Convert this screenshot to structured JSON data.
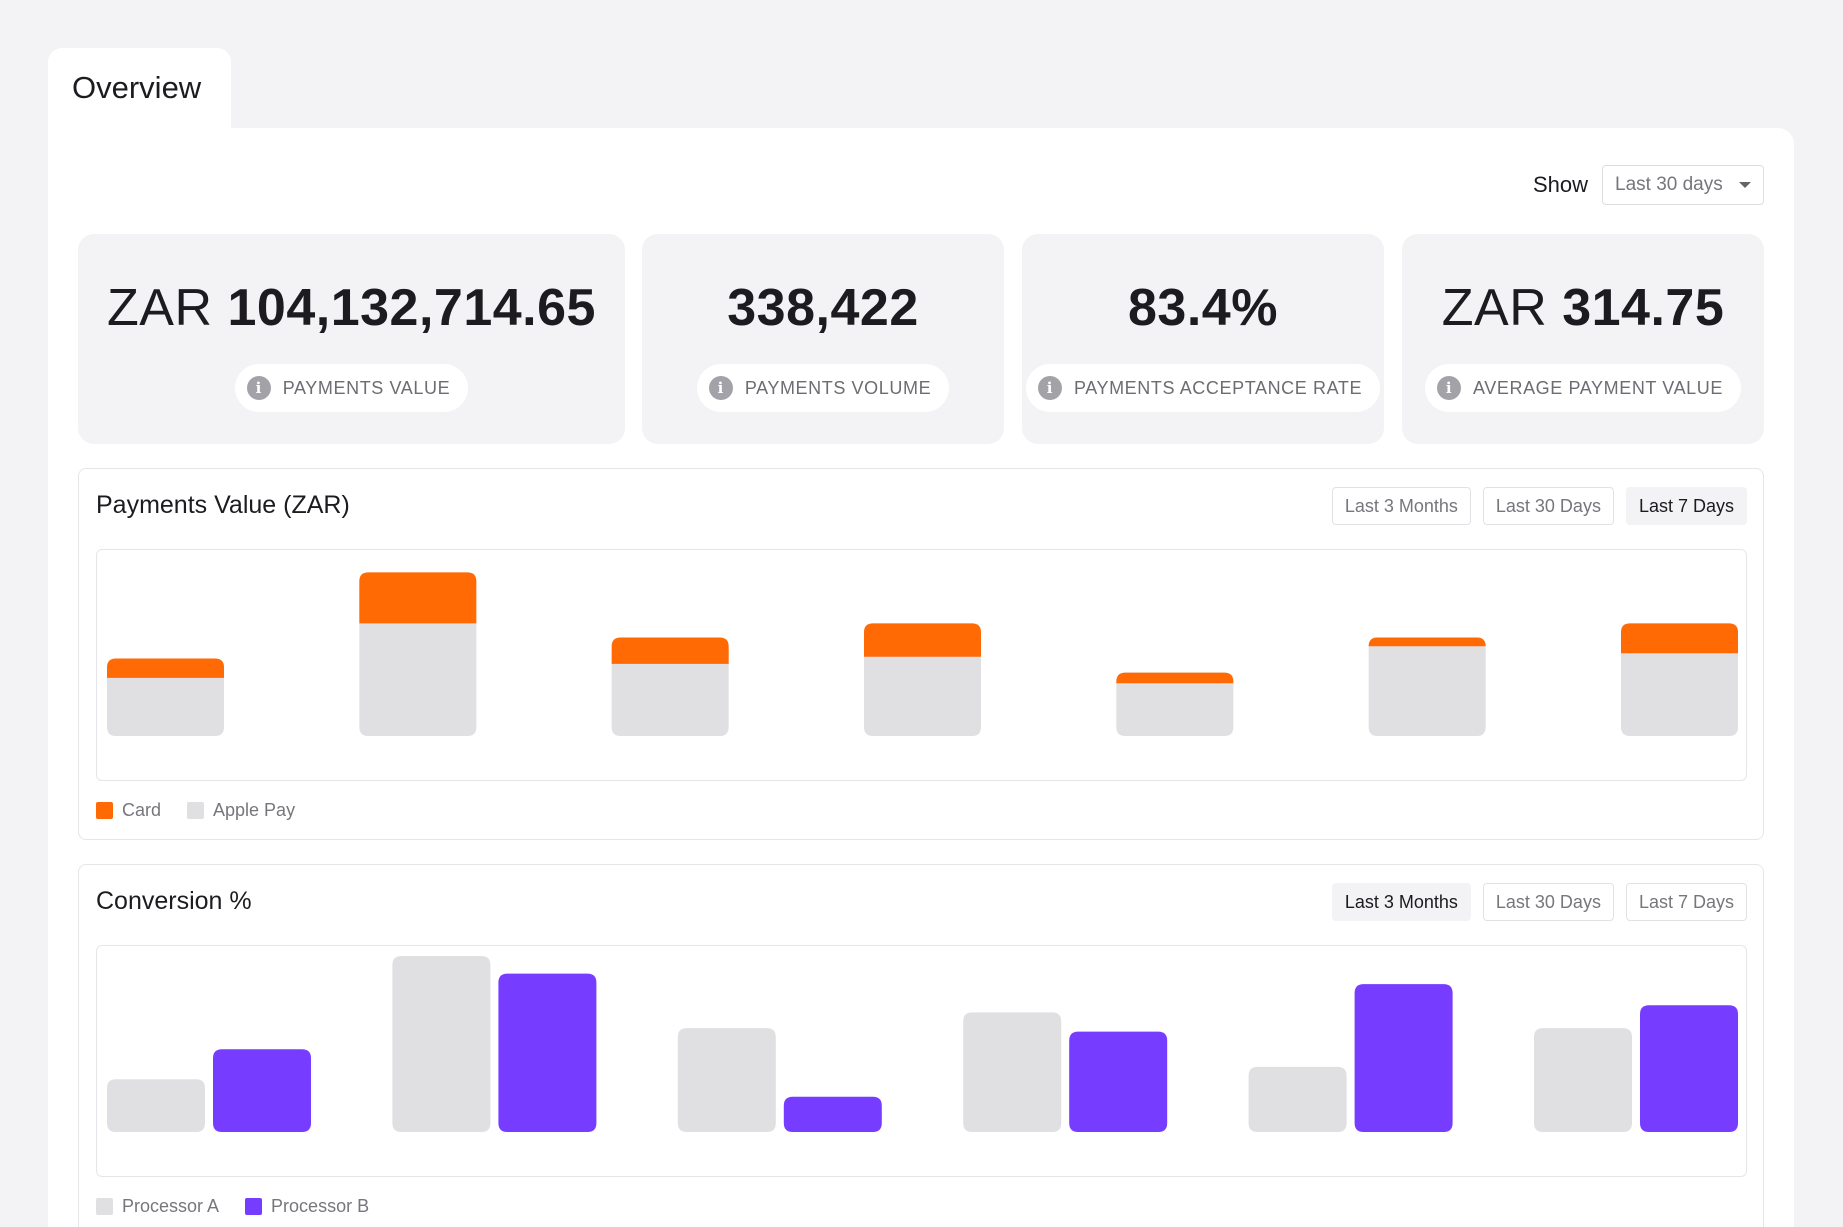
{
  "tab": {
    "label": "Overview"
  },
  "filter": {
    "label": "Show",
    "selected": "Last 30 days"
  },
  "kpis": [
    {
      "currency": "ZAR",
      "value": "104,132,714.65",
      "label": "PAYMENTS VALUE"
    },
    {
      "currency": "",
      "value": "338,422",
      "label": "PAYMENTS VOLUME"
    },
    {
      "currency": "",
      "value": "83.4%",
      "label": "PAYMENTS ACCEPTANCE RATE"
    },
    {
      "currency": "ZAR",
      "value": "314.75",
      "label": "AVERAGE PAYMENT VALUE"
    }
  ],
  "info_icon": "info-icon",
  "payments_chart": {
    "title": "Payments Value (ZAR)",
    "ranges": [
      "Last 3 Months",
      "Last 30 Days",
      "Last 7 Days"
    ],
    "active_range": "Last 7 Days",
    "legend": [
      {
        "name": "Card",
        "color": "#ff6a05"
      },
      {
        "name": "Apple Pay",
        "color": "#e0dfe2"
      }
    ]
  },
  "conversion_chart": {
    "title": "Conversion %",
    "ranges": [
      "Last 3 Months",
      "Last 30 Days",
      "Last 7 Days"
    ],
    "active_range": "Last 3 Months",
    "legend": [
      {
        "name": "Processor A",
        "color": "#e0dfe2"
      },
      {
        "name": "Processor B",
        "color": "#763cff"
      }
    ]
  },
  "chart_data": [
    {
      "type": "bar",
      "stacked": true,
      "title": "Payments Value (ZAR)",
      "ylim": [
        0,
        100
      ],
      "grid": false,
      "legend_placement": "bottom-left",
      "series": [
        {
          "name": "Apple Pay",
          "color": "#e0dfe2",
          "values": [
            33,
            64,
            41,
            45,
            30,
            51,
            47
          ]
        },
        {
          "name": "Card",
          "color": "#ff6a05",
          "values": [
            11,
            29,
            15,
            19,
            6,
            5,
            17
          ]
        }
      ]
    },
    {
      "type": "bar",
      "stacked": false,
      "title": "Conversion %",
      "ylim": [
        0,
        100
      ],
      "grid": false,
      "legend_placement": "bottom-left",
      "series": [
        {
          "name": "Processor A",
          "color": "#e0dfe2",
          "values": [
            30,
            100,
            59,
            68,
            37,
            59
          ]
        },
        {
          "name": "Processor B",
          "color": "#763cff",
          "values": [
            47,
            90,
            20,
            57,
            84,
            72
          ]
        }
      ]
    }
  ]
}
